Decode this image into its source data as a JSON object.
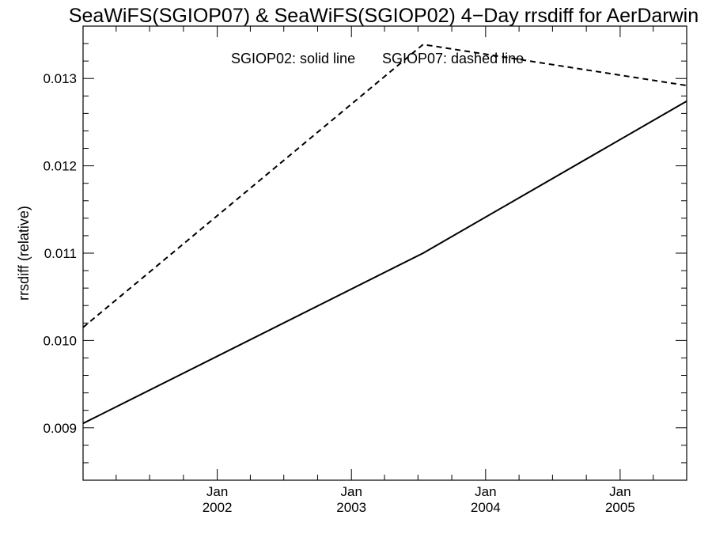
{
  "chart_data": {
    "type": "line",
    "title": "SeaWiFS(SGIOP07) & SeaWiFS(SGIOP02) 4−Day rrsdiff for AerDarwin",
    "xlabel": "",
    "ylabel": "rrsdiff (relative)",
    "xlim": [
      "2001-01-01",
      "2005-07-01"
    ],
    "ylim": [
      0.0084,
      0.0136
    ],
    "y_ticks": [
      {
        "value": 0.009,
        "label": "0.009"
      },
      {
        "value": 0.01,
        "label": "0.010"
      },
      {
        "value": 0.011,
        "label": "0.011"
      },
      {
        "value": 0.012,
        "label": "0.012"
      },
      {
        "value": 0.013,
        "label": "0.013"
      }
    ],
    "x_ticks": [
      {
        "date": "2002-01-01",
        "month": "Jan",
        "year": "2002"
      },
      {
        "date": "2003-01-01",
        "month": "Jan",
        "year": "2003"
      },
      {
        "date": "2004-01-01",
        "month": "Jan",
        "year": "2004"
      },
      {
        "date": "2005-01-01",
        "month": "Jan",
        "year": "2005"
      }
    ],
    "legend_solid": "SGIOP02: solid line",
    "legend_dashed": "SGIOP07: dashed line",
    "grid": false,
    "series": [
      {
        "name": "SGIOP02",
        "style": "solid",
        "x": [
          "2001-01-01",
          "2003-07-15",
          "2005-07-01"
        ],
        "values": [
          0.00905,
          0.011,
          0.01274
        ]
      },
      {
        "name": "SGIOP07",
        "style": "dashed",
        "x": [
          "2001-01-01",
          "2003-07-15",
          "2005-07-01"
        ],
        "values": [
          0.01015,
          0.01339,
          0.01292
        ]
      }
    ],
    "colors": {
      "line": "#000000",
      "background": "#ffffff"
    }
  }
}
